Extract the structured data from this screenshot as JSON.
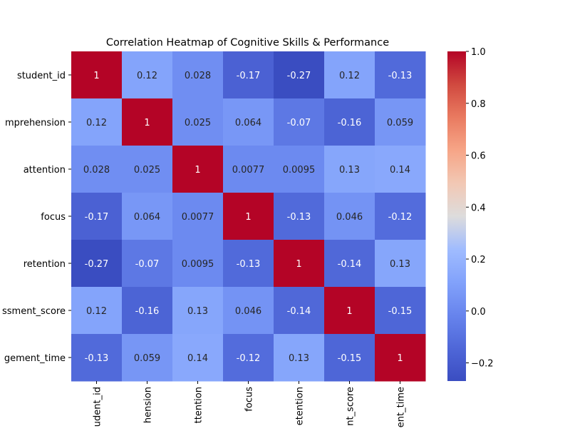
{
  "chart_data": {
    "type": "heatmap",
    "title": "Correlation Heatmap of Cognitive Skills & Performance",
    "row_labels": [
      "student_id",
      "mprehension",
      "attention",
      "focus",
      "retention",
      "ssment_score",
      "gement_time"
    ],
    "col_labels": [
      "udent_id",
      "hension",
      "ttention",
      "focus",
      "etention",
      "nt_score",
      "ent_time"
    ],
    "values": [
      [
        1,
        0.12,
        0.028,
        -0.17,
        -0.27,
        0.12,
        -0.13
      ],
      [
        0.12,
        1,
        0.025,
        0.064,
        -0.07,
        -0.16,
        0.059
      ],
      [
        0.028,
        0.025,
        1,
        0.0077,
        0.0095,
        0.13,
        0.14
      ],
      [
        -0.17,
        0.064,
        0.0077,
        1,
        -0.13,
        0.046,
        -0.12
      ],
      [
        -0.27,
        -0.07,
        0.0095,
        -0.13,
        1,
        -0.14,
        0.13
      ],
      [
        0.12,
        -0.16,
        0.13,
        0.046,
        -0.14,
        1,
        -0.15
      ],
      [
        -0.13,
        0.059,
        0.14,
        -0.12,
        0.13,
        -0.15,
        1
      ]
    ],
    "annotations": [
      [
        "1",
        "0.12",
        "0.028",
        "-0.17",
        "-0.27",
        "0.12",
        "-0.13"
      ],
      [
        "0.12",
        "1",
        "0.025",
        "0.064",
        "-0.07",
        "-0.16",
        "0.059"
      ],
      [
        "0.028",
        "0.025",
        "1",
        "0.0077",
        "0.0095",
        "0.13",
        "0.14"
      ],
      [
        "-0.17",
        "0.064",
        "0.0077",
        "1",
        "-0.13",
        "0.046",
        "-0.12"
      ],
      [
        "-0.27",
        "-0.07",
        "0.0095",
        "-0.13",
        "1",
        "-0.14",
        "0.13"
      ],
      [
        "0.12",
        "-0.16",
        "0.13",
        "0.046",
        "-0.14",
        "1",
        "-0.15"
      ],
      [
        "-0.13",
        "0.059",
        "0.14",
        "-0.12",
        "0.13",
        "-0.15",
        "1"
      ]
    ],
    "colormap": "coolwarm",
    "vmin": -0.27,
    "vmax": 1.0,
    "colorbar_ticks": [
      1.0,
      0.8,
      0.6,
      0.4,
      0.2,
      0.0,
      -0.2
    ],
    "colorbar_tick_labels": [
      "1.0",
      "0.8",
      "0.6",
      "0.4",
      "0.2",
      "0.0",
      "−0.2"
    ],
    "grid": false
  }
}
